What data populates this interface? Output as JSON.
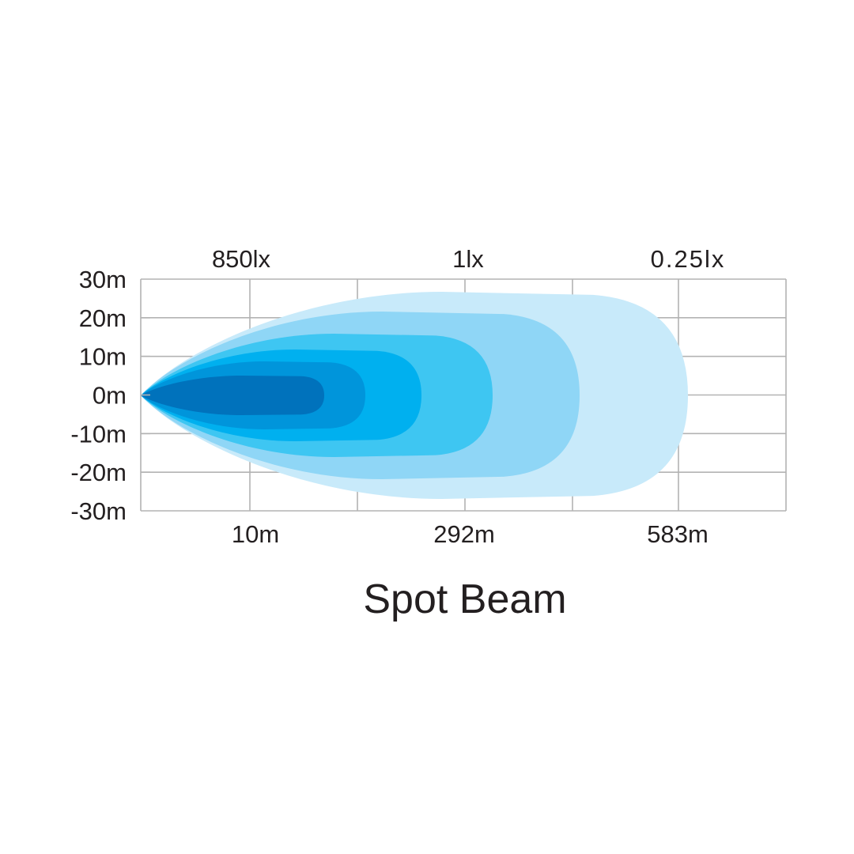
{
  "chart_data": {
    "type": "area",
    "title": "Spot Beam",
    "y_ticks": [
      "30m",
      "20m",
      "10m",
      "0m",
      "-10m",
      "-20m",
      "-30m"
    ],
    "ylim": [
      -30,
      30
    ],
    "x_labels": [
      "10m",
      "292m",
      "583m"
    ],
    "lux_labels": [
      "850lx",
      "1lx",
      "0.25lx"
    ],
    "grid": true,
    "grid_color": "#b3b3b3",
    "layer_colors": [
      "#c8eafa",
      "#8fd6f6",
      "#3ec6f2",
      "#00b0ef",
      "#0095db",
      "#0072bc"
    ]
  }
}
